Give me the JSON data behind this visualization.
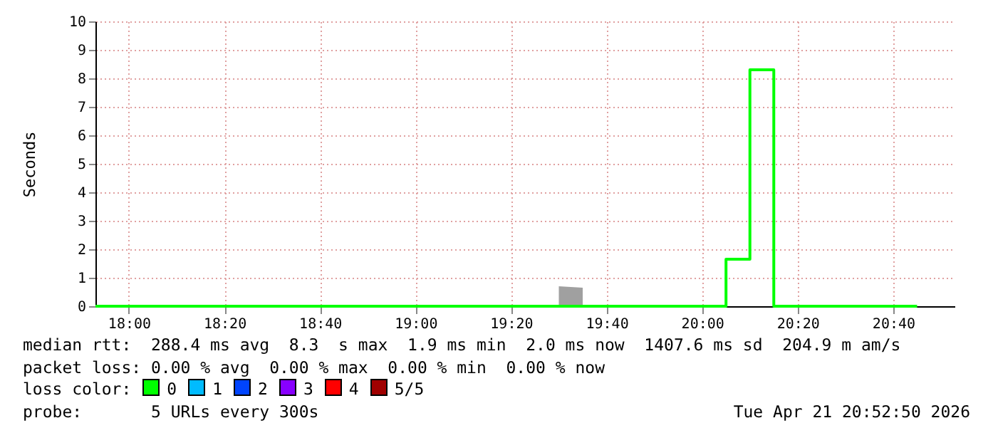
{
  "chart_data": {
    "type": "line",
    "ylabel": "Seconds",
    "xlim": [
      17.8833,
      20.8806
    ],
    "xticks": [
      {
        "value": 18,
        "label": "18:00"
      },
      {
        "value": 18.3333,
        "label": "18:20"
      },
      {
        "value": 18.6667,
        "label": "18:40"
      },
      {
        "value": 19,
        "label": "19:00"
      },
      {
        "value": 19.3333,
        "label": "19:20"
      },
      {
        "value": 19.6667,
        "label": "19:40"
      },
      {
        "value": 20,
        "label": "20:00"
      },
      {
        "value": 20.3333,
        "label": "20:20"
      },
      {
        "value": 20.6667,
        "label": "20:40"
      }
    ],
    "ylim": [
      0,
      10
    ],
    "yticks": [
      0,
      1,
      2,
      3,
      4,
      5,
      6,
      7,
      8,
      9,
      10
    ],
    "grid": true,
    "series": [
      {
        "type": "area",
        "color": "#a0a0a0",
        "x": [
          19.4167,
          19.5,
          19.5,
          19.5833,
          19.5833
        ],
        "values": [
          0.05,
          0.05,
          0.65,
          0.65,
          0
        ]
      },
      {
        "color": "#00ff00",
        "x": [
          17.8833,
          20.0833,
          20.0833,
          20.1667,
          20.1667,
          20.25,
          20.25,
          20.75
        ],
        "values": [
          0,
          0,
          1.65,
          1.65,
          8.3,
          8.3,
          0,
          0
        ]
      }
    ],
    "annotations": [
      "median rtt:  288.4 ms avg  8.3  s max  1.9 ms min  2.0 ms now  1407.6 ms sd  204.9 m am/s",
      "packet loss: 0.00 % avg  0.00 % max  0.00 % min  0.00 % now",
      "loss color:  0  1  2  3  4  5/5",
      "probe:       5 URLs every 300s",
      "Tue Apr 21 20:52:50 2026"
    ]
  }
}
